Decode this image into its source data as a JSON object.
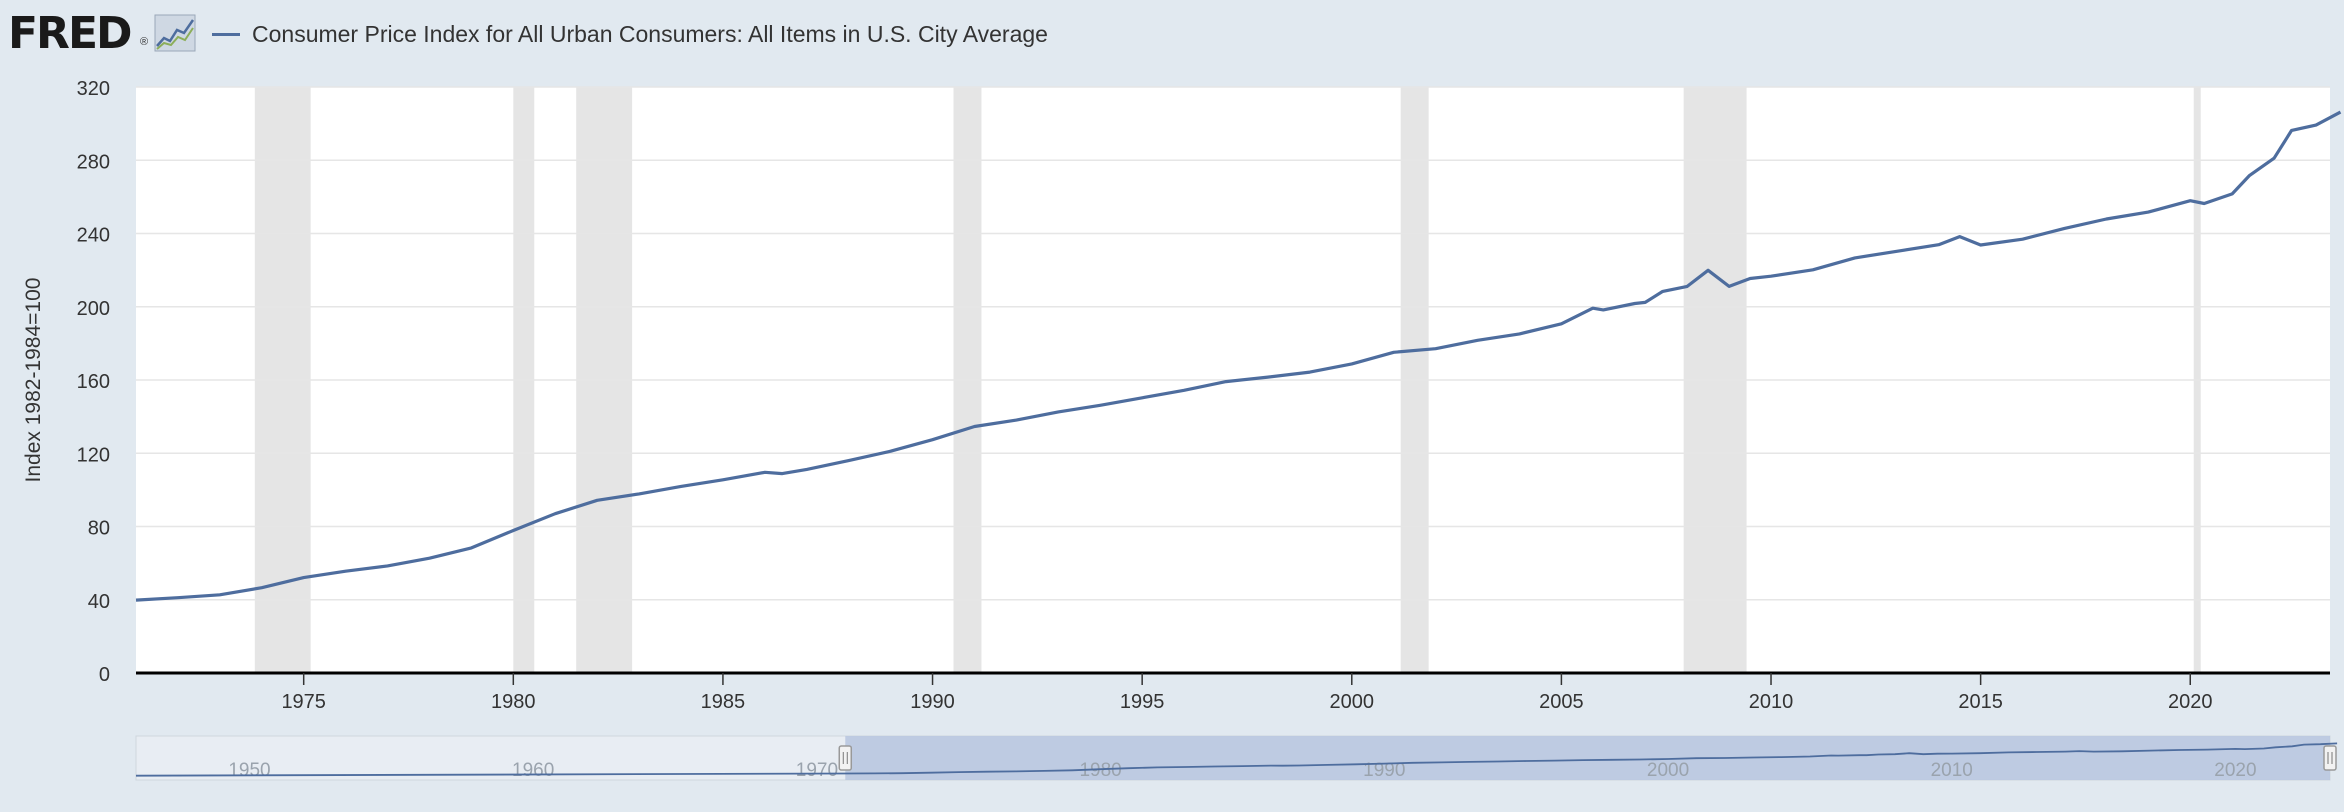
{
  "brand": {
    "name": "FRED",
    "reg": "®",
    "icon": "line-chart-icon"
  },
  "colors": {
    "series": "#4e6d9e",
    "recession": "#e5e5e5",
    "background": "#e1e9f0",
    "plot": "#ffffff",
    "navigator_fill": "#b9c6e0",
    "navigator_line": "#4e6d9e"
  },
  "chart_data": {
    "type": "line",
    "title": "",
    "series": [
      {
        "name": "Consumer Price Index for All Urban Consumers: All Items in U.S. City Average",
        "x": [
          "1971-01",
          "1972-01",
          "1973-01",
          "1974-01",
          "1975-01",
          "1976-01",
          "1977-01",
          "1978-01",
          "1979-01",
          "1980-01",
          "1981-01",
          "1982-01",
          "1983-01",
          "1984-01",
          "1985-01",
          "1986-01",
          "1986-06",
          "1987-01",
          "1988-01",
          "1989-01",
          "1990-01",
          "1991-01",
          "1992-01",
          "1993-01",
          "1994-01",
          "1995-01",
          "1996-01",
          "1997-01",
          "1998-01",
          "1999-01",
          "2000-01",
          "2001-01",
          "2002-01",
          "2003-01",
          "2004-01",
          "2005-01",
          "2005-10",
          "2006-01",
          "2006-10",
          "2007-01",
          "2007-06",
          "2008-01",
          "2008-07",
          "2009-01",
          "2009-07",
          "2010-01",
          "2011-01",
          "2012-01",
          "2013-01",
          "2014-01",
          "2014-07",
          "2015-01",
          "2016-01",
          "2017-01",
          "2018-01",
          "2019-01",
          "2020-01",
          "2020-05",
          "2021-01",
          "2021-06",
          "2022-01",
          "2022-06",
          "2023-01",
          "2023-08"
        ],
        "y": [
          39.8,
          41.1,
          42.7,
          46.6,
          52.1,
          55.6,
          58.5,
          62.7,
          68.3,
          77.8,
          87.0,
          94.3,
          97.8,
          101.9,
          105.5,
          109.6,
          108.9,
          111.2,
          116.0,
          121.1,
          127.4,
          134.6,
          138.1,
          142.6,
          146.2,
          150.3,
          154.4,
          159.1,
          161.6,
          164.3,
          168.8,
          175.1,
          177.1,
          181.7,
          185.2,
          190.7,
          199.2,
          198.3,
          201.8,
          202.4,
          208.4,
          211.1,
          219.9,
          211.1,
          215.4,
          216.7,
          220.2,
          226.7,
          230.3,
          233.9,
          238.3,
          233.7,
          236.9,
          242.8,
          247.9,
          251.7,
          257.9,
          256.4,
          261.6,
          271.7,
          281.1,
          296.3,
          299.2,
          306.3
        ]
      }
    ],
    "recessions": [
      [
        "1973-11",
        "1975-03"
      ],
      [
        "1980-01",
        "1980-07"
      ],
      [
        "1981-07",
        "1982-11"
      ],
      [
        "1990-07",
        "1991-03"
      ],
      [
        "2001-03",
        "2001-11"
      ],
      [
        "2007-12",
        "2009-06"
      ],
      [
        "2020-02",
        "2020-04"
      ]
    ],
    "xlim": [
      "1971-01",
      "2023-05"
    ],
    "ylim": [
      0,
      320
    ],
    "yticks": [
      0,
      40,
      80,
      120,
      160,
      200,
      240,
      280,
      320
    ],
    "xticks": [
      "1975",
      "1980",
      "1985",
      "1990",
      "1995",
      "2000",
      "2005",
      "2010",
      "2015",
      "2020"
    ],
    "ylabel": "Index 1982-1984=100",
    "xlabel": "",
    "grid": true,
    "legend": "top-left",
    "navigator": {
      "xlim": [
        "1946-01",
        "2023-05"
      ],
      "selection": [
        "1971-01",
        "2023-05"
      ],
      "ticks": [
        "1950",
        "1960",
        "1970",
        "1980",
        "1990",
        "2000",
        "2010",
        "2020"
      ]
    }
  }
}
